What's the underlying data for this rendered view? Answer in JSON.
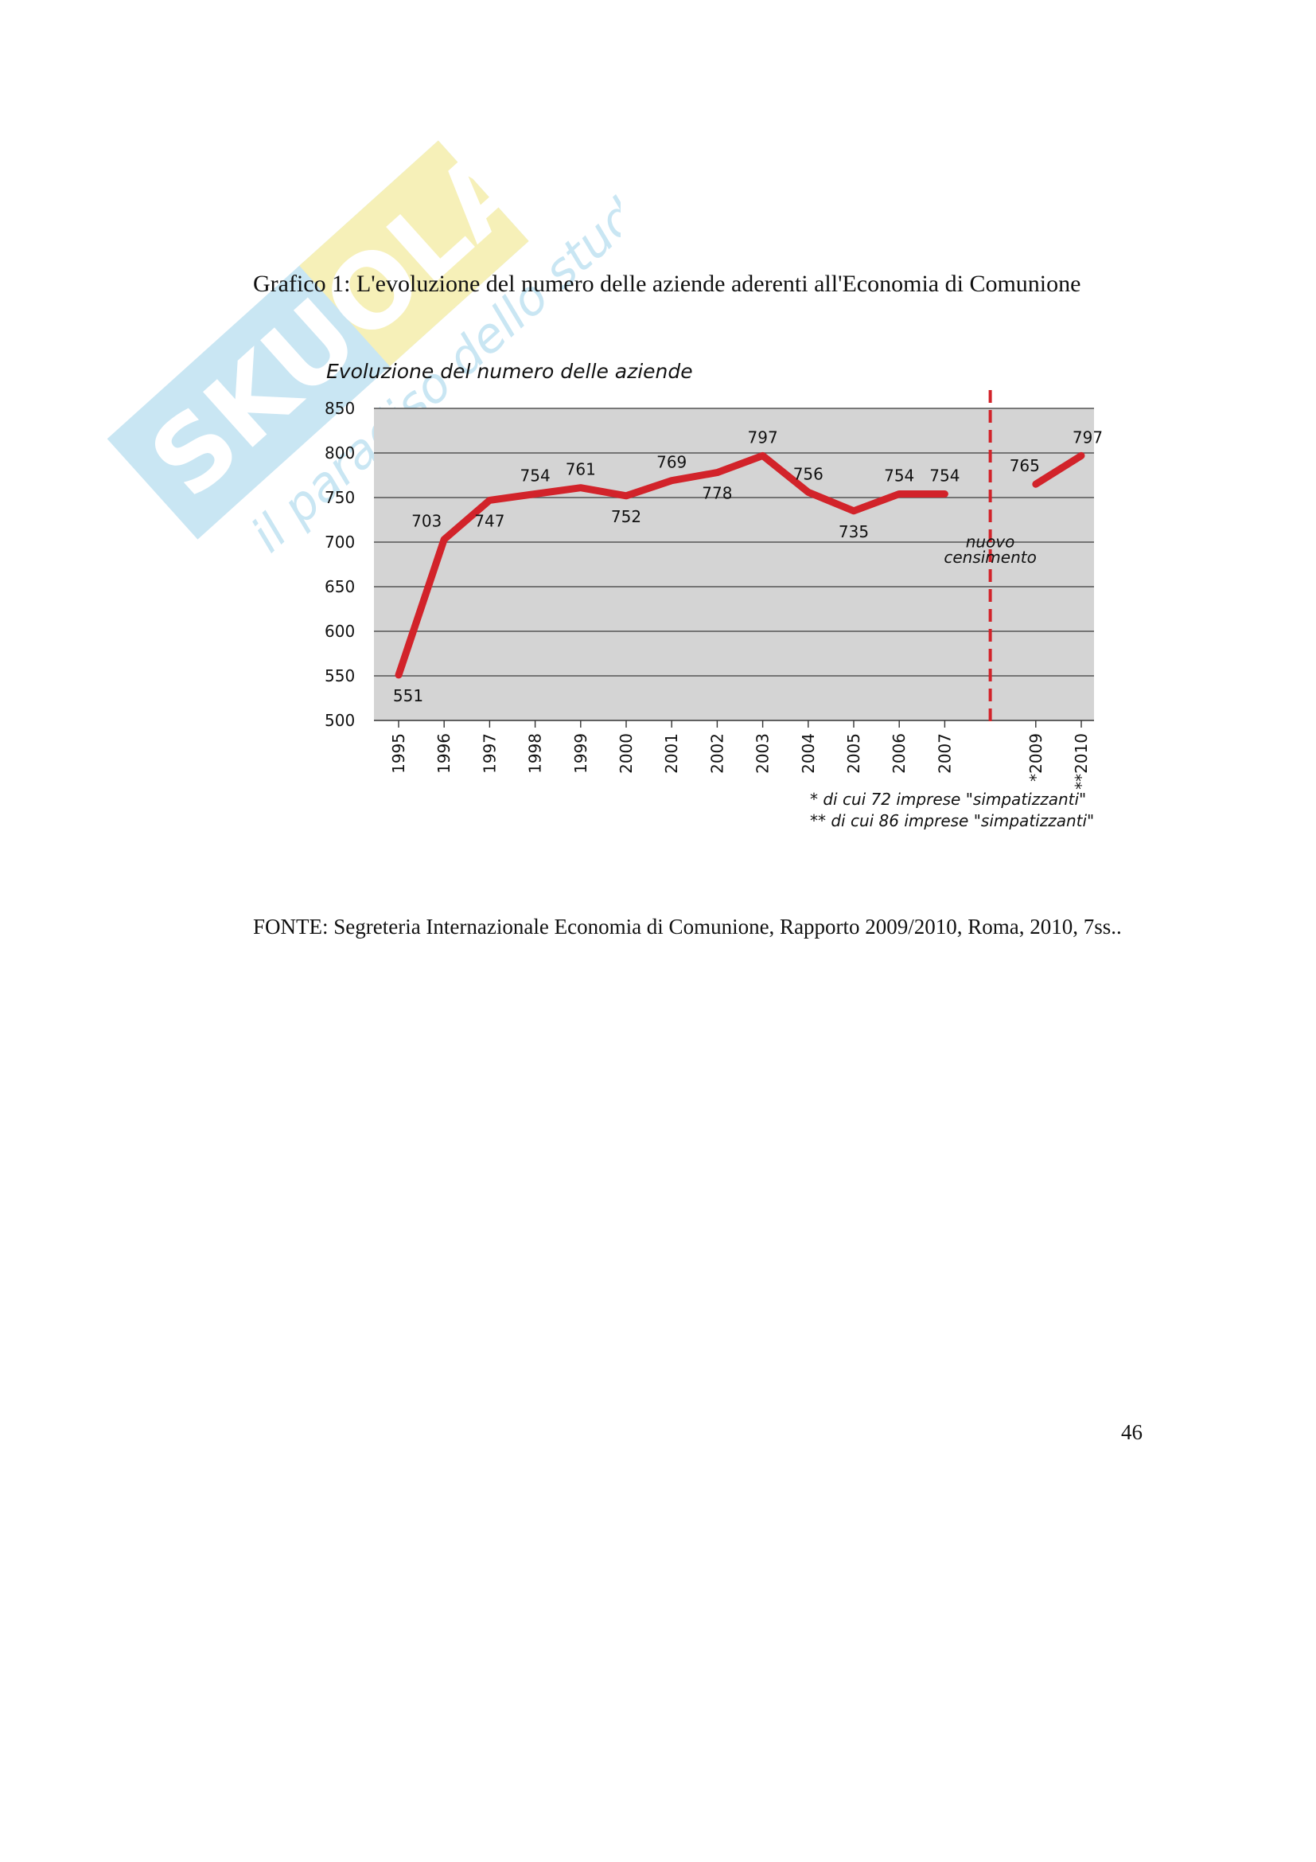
{
  "watermark": {
    "brand": "SKUOLA.net",
    "tagline": "il paradiso dello studente",
    "colors": {
      "blue": "#c9e6f3",
      "yellow": "#f6f0b8"
    }
  },
  "caption": "Grafico 1: L'evoluzione del numero delle aziende aderenti all'Economia di Comunione",
  "source_note": "FONTE: Segreteria Internazionale Economia di Comunione, Rapporto 2009/2010, Roma, 2010, 7ss..",
  "page_number": "46",
  "chart_data": {
    "type": "line",
    "title": "Evoluzione del numero delle aziende",
    "xlabel": "",
    "ylabel": "",
    "ylim": [
      500,
      850
    ],
    "yticks": [
      850,
      800,
      750,
      700,
      650,
      600,
      550,
      500
    ],
    "categories": [
      "1995",
      "1996",
      "1997",
      "1998",
      "1999",
      "2000",
      "2001",
      "2002",
      "2003",
      "2004",
      "2005",
      "2006",
      "2007",
      "*2009",
      "**2010"
    ],
    "series": [
      {
        "values": [
          551,
          703,
          747,
          754,
          761,
          752,
          769,
          778,
          797,
          756,
          735,
          754,
          754
        ],
        "x": [
          "1995",
          "1996",
          "1997",
          "1998",
          "1999",
          "2000",
          "2001",
          "2002",
          "2003",
          "2004",
          "2005",
          "2006",
          "2007"
        ]
      },
      {
        "values": [
          765,
          797
        ],
        "x": [
          "*2009",
          "**2010"
        ]
      }
    ],
    "break_label": "nuovo censimento",
    "footnotes": [
      "* di cui 72 imprese \"simpatizzanti\"",
      "** di cui 86 imprese \"simpatizzanti\""
    ],
    "grid": true,
    "colors": {
      "line": "#d2232a",
      "plot_bg": "#d4d4d4",
      "grid": "#555555"
    }
  }
}
